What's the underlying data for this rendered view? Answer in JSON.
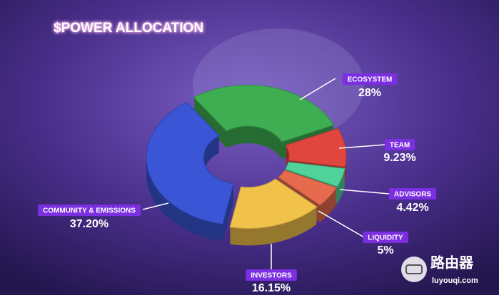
{
  "chart_data": {
    "type": "pie",
    "title": "$POWER ALLOCATION",
    "categories": [
      "ECOSYSTEM",
      "TEAM",
      "ADVISORS",
      "LIQUIDITY",
      "INVESTORS",
      "COMMUNITY & EMISSIONS"
    ],
    "values": [
      28,
      9.23,
      4.42,
      5,
      16.15,
      37.2
    ],
    "value_labels": [
      "28%",
      "9.23%",
      "4.42%",
      "5%",
      "16.15%",
      "37.20%"
    ],
    "colors": [
      "#3fae52",
      "#e0463e",
      "#4fd39a",
      "#e56a4e",
      "#f1c24a",
      "#3a55d6"
    ]
  },
  "watermark": {
    "title": "路由器",
    "url": "luyouqi.com"
  }
}
